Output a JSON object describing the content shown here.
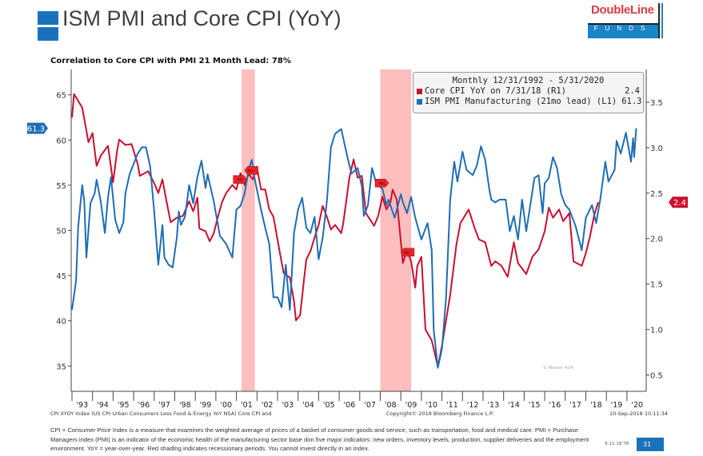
{
  "header": {
    "title": "ISM PMI and Core CPI (YoY)",
    "subtitle": "Correlation to Core CPI with PMI 21 Month Lead: 78%",
    "accent_color": "#1a72bb",
    "logo": {
      "brand": "DoubleLine",
      "sub": "FUNDS"
    }
  },
  "chart_data": {
    "type": "line",
    "title": "",
    "legend": {
      "placement": "top-right",
      "header": "Monthly 12/31/1992 - 5/31/2020",
      "entries": [
        {
          "label": "Core CPI YoY on 7/31/18 (R1)",
          "value": "2.4",
          "color": "#c8102e"
        },
        {
          "label": "ISM PMI Manufacturing (21mo lead) (L1)",
          "value": "61.3",
          "color": "#1f6db5"
        }
      ]
    },
    "x_axis": {
      "range": [
        1993,
        2020.9
      ],
      "tick_labels": [
        "'93",
        "'94",
        "'95",
        "'96",
        "'97",
        "'98",
        "'99",
        "'00",
        "'01",
        "'02",
        "'03",
        "'04",
        "'05",
        "'06",
        "'07",
        "'08",
        "'09",
        "'10",
        "'11",
        "'12",
        "'13",
        "'14",
        "'15",
        "'16",
        "'17",
        "'18",
        "'19",
        "'20"
      ]
    },
    "y_left": {
      "range": [
        32.2,
        67.8
      ],
      "ticks": [
        35,
        40,
        45,
        50,
        55,
        60,
        65
      ],
      "last_value_tag": "61.3"
    },
    "y_right": {
      "range": [
        0.32,
        3.86
      ],
      "ticks": [
        "0.5",
        "1.0",
        "1.5",
        "2.0",
        "2.5",
        "3.0",
        "3.5"
      ],
      "last_value_tag": "2.4"
    },
    "grid": false,
    "recessions": [
      [
        2001.25,
        2001.9
      ],
      [
        2008.0,
        2009.5
      ]
    ],
    "recession_color": "#ffb3b3",
    "annotations": [
      {
        "label": "REC",
        "x": 2001.2,
        "y_right": 2.65,
        "direction": "right"
      },
      {
        "label": "REC",
        "x": 2001.7,
        "y_right": 2.75,
        "direction": "left"
      },
      {
        "label": "REC",
        "x": 2008.1,
        "y_right": 2.61,
        "direction": "right"
      },
      {
        "label": "REC",
        "x": 2009.3,
        "y_right": 1.85,
        "direction": "left"
      }
    ],
    "watermark": "G Master 424",
    "series": [
      {
        "name": "Core CPI YoY on 7/31/18 (R1)",
        "axis": "right",
        "color": "#c8102e",
        "x": [
          1993.0,
          1993.1,
          1993.5,
          1993.8,
          1994.0,
          1994.2,
          1994.4,
          1994.75,
          1995.0,
          1995.2,
          1995.3,
          1995.6,
          1995.9,
          1996.2,
          1996.3,
          1996.7,
          1997.0,
          1997.2,
          1997.4,
          1997.6,
          1997.8,
          1998.1,
          1998.4,
          1998.7,
          1998.9,
          1999.1,
          1999.2,
          1999.5,
          1999.7,
          1999.9,
          2000.1,
          2000.3,
          2000.5,
          2000.8,
          2001.0,
          2001.2,
          2001.4,
          2001.6,
          2001.8,
          2002.0,
          2002.2,
          2002.4,
          2002.6,
          2002.8,
          2003.1,
          2003.3,
          2003.6,
          2003.8,
          2003.9,
          2004.1,
          2004.3,
          2004.4,
          2004.6,
          2004.8,
          2005.0,
          2005.2,
          2005.4,
          2005.6,
          2005.8,
          2006.1,
          2006.2,
          2006.5,
          2006.7,
          2006.9,
          2007.1,
          2007.3,
          2007.7,
          2007.9,
          2008.1,
          2008.3,
          2008.5,
          2008.6,
          2008.8,
          2009.1,
          2009.3,
          2009.5,
          2009.7,
          2009.8,
          2010.0,
          2010.2,
          2010.5,
          2010.8,
          2011.0,
          2011.4,
          2011.7,
          2011.9,
          2012.3,
          2012.6,
          2012.8,
          2013.1,
          2013.4,
          2013.6,
          2013.9,
          2014.2,
          2014.5,
          2014.7,
          2015.1,
          2015.4,
          2015.7,
          2016.0,
          2016.2,
          2016.4,
          2016.7,
          2016.9,
          2017.2,
          2017.4,
          2017.8,
          2018.0,
          2018.2,
          2018.4,
          2018.6
        ],
        "values": [
          3.33,
          3.59,
          3.44,
          3.06,
          3.16,
          2.8,
          2.91,
          3.02,
          2.62,
          2.97,
          3.09,
          3.03,
          3.04,
          2.82,
          2.69,
          2.74,
          2.61,
          2.5,
          2.65,
          2.41,
          2.18,
          2.23,
          2.25,
          2.41,
          2.3,
          2.45,
          2.11,
          2.08,
          1.97,
          2.06,
          2.24,
          2.4,
          2.5,
          2.59,
          2.54,
          2.72,
          2.59,
          2.71,
          2.65,
          2.78,
          2.54,
          2.54,
          2.32,
          2.24,
          1.86,
          1.62,
          1.57,
          1.31,
          1.1,
          1.16,
          1.57,
          1.77,
          1.86,
          2.01,
          2.15,
          2.36,
          2.24,
          2.1,
          2.15,
          2.06,
          2.17,
          2.67,
          2.87,
          2.67,
          2.69,
          2.28,
          2.14,
          2.25,
          2.46,
          2.32,
          2.4,
          2.54,
          2.43,
          1.73,
          1.88,
          1.75,
          1.46,
          1.7,
          1.8,
          1.0,
          0.88,
          0.59,
          0.82,
          1.38,
          1.93,
          2.17,
          2.32,
          2.11,
          1.99,
          1.96,
          1.7,
          1.75,
          1.7,
          1.58,
          1.96,
          1.73,
          1.61,
          1.8,
          1.88,
          2.08,
          2.34,
          2.23,
          2.32,
          2.19,
          2.28,
          1.75,
          1.7,
          1.84,
          2.02,
          2.25,
          2.4
        ]
      },
      {
        "name": "ISM PMI Manufacturing (21mo lead) (L1)",
        "axis": "left",
        "color": "#1f6db5",
        "x": [
          1993.0,
          1993.2,
          1993.3,
          1993.5,
          1993.6,
          1993.7,
          1993.9,
          1994.1,
          1994.2,
          1994.4,
          1994.6,
          1994.75,
          1994.9,
          1995.1,
          1995.3,
          1995.5,
          1995.6,
          1995.8,
          1996.2,
          1996.4,
          1996.6,
          1996.8,
          1997.0,
          1997.2,
          1997.4,
          1997.5,
          1997.7,
          1997.9,
          1998.1,
          1998.2,
          1998.3,
          1998.5,
          1998.7,
          1998.9,
          1999.1,
          1999.3,
          1999.5,
          1999.6,
          1999.9,
          2000.2,
          2000.5,
          2000.8,
          2001.0,
          2001.2,
          2001.4,
          2001.6,
          2001.75,
          2001.9,
          2002.2,
          2002.4,
          2002.6,
          2002.8,
          2003.0,
          2003.2,
          2003.4,
          2003.6,
          2003.8,
          2004.0,
          2004.2,
          2004.4,
          2004.6,
          2004.8,
          2005.0,
          2005.2,
          2005.4,
          2005.6,
          2005.8,
          2006.1,
          2006.4,
          2006.6,
          2006.9,
          2007.1,
          2007.2,
          2007.4,
          2007.6,
          2007.8,
          2008.1,
          2008.3,
          2008.4,
          2008.7,
          2009.0,
          2009.1,
          2009.3,
          2009.5,
          2009.7,
          2010.0,
          2010.3,
          2010.5,
          2010.6,
          2010.8,
          2011.0,
          2011.2,
          2011.4,
          2011.6,
          2011.75,
          2012.0,
          2012.2,
          2012.5,
          2012.7,
          2012.9,
          2013.1,
          2013.3,
          2013.4,
          2013.6,
          2013.8,
          2014.1,
          2014.3,
          2014.5,
          2014.7,
          2014.9,
          2015.1,
          2015.5,
          2015.7,
          2015.9,
          2016.0,
          2016.2,
          2016.4,
          2016.6,
          2016.8,
          2017.0,
          2017.2,
          2017.5,
          2017.8,
          2018.0,
          2018.3,
          2018.5,
          2018.7,
          2018.95,
          2019.1,
          2019.4,
          2019.5,
          2019.7,
          2019.95,
          2020.2,
          2020.3,
          2020.35,
          2020.45
        ],
        "values": [
          41.2,
          44.4,
          50.3,
          55.0,
          53.2,
          47.0,
          53.0,
          54.1,
          55.6,
          53.2,
          49.7,
          53.6,
          55.9,
          51.2,
          49.7,
          50.9,
          54.1,
          56.2,
          58.5,
          59.2,
          59.2,
          57.1,
          52.1,
          46.2,
          50.6,
          47.0,
          46.2,
          45.9,
          49.2,
          52.1,
          50.6,
          51.5,
          55.0,
          53.0,
          55.9,
          57.7,
          54.7,
          56.2,
          53.2,
          49.4,
          48.5,
          47.0,
          52.3,
          52.7,
          54.1,
          56.8,
          57.8,
          55.6,
          52.3,
          50.3,
          48.5,
          42.6,
          42.6,
          41.5,
          46.2,
          41.2,
          49.7,
          52.3,
          53.6,
          50.3,
          49.7,
          51.5,
          46.8,
          49.2,
          53.2,
          59.2,
          60.7,
          61.2,
          58.1,
          56.3,
          56.9,
          54.9,
          51.6,
          52.8,
          56.9,
          55.2,
          54.6,
          52.8,
          53.4,
          51.4,
          54.0,
          53.1,
          51.9,
          53.7,
          51.4,
          49.0,
          50.8,
          47.8,
          39.0,
          34.8,
          36.9,
          42.5,
          53.4,
          57.6,
          55.4,
          58.7,
          56.7,
          56.1,
          57.2,
          59.3,
          57.8,
          54.6,
          53.4,
          53.1,
          53.4,
          53.4,
          49.9,
          51.6,
          49.0,
          53.4,
          49.9,
          55.8,
          56.1,
          51.9,
          55.2,
          55.8,
          58.1,
          56.9,
          54.0,
          52.8,
          52.3,
          50.5,
          47.8,
          51.4,
          52.8,
          50.8,
          53.4,
          57.6,
          55.4,
          56.7,
          59.9,
          58.5,
          60.8,
          57.6,
          60.2,
          58.1,
          61.3
        ]
      }
    ]
  },
  "footer": {
    "source": "CPI XYOY Index (US CPI Urban Consumers Less Food & Energy YoY NSA) Core CPI and",
    "copyright": "Copyright© 2018 Bloomberg Finance L.P.",
    "timestamp": "10-Sep-2018 10:11:34",
    "notes": "CPI = Consumer Price Index is a measure that examines the weighted average of prices of a basket of consumer goods and service, such as transportation, food and medical care. PMI = Purchase Managers index  (PMI) is an indicator of the economic health of the manufacturing sector base don five major indicators: new orders, inventory levels, production, supplier deliveries and the employment environment.  YoY = year-over-year. Red shading indicates recessionary periods. You cannot invest directly in an index.",
    "date_code": "9-11-18 TR",
    "page_number": "31"
  }
}
